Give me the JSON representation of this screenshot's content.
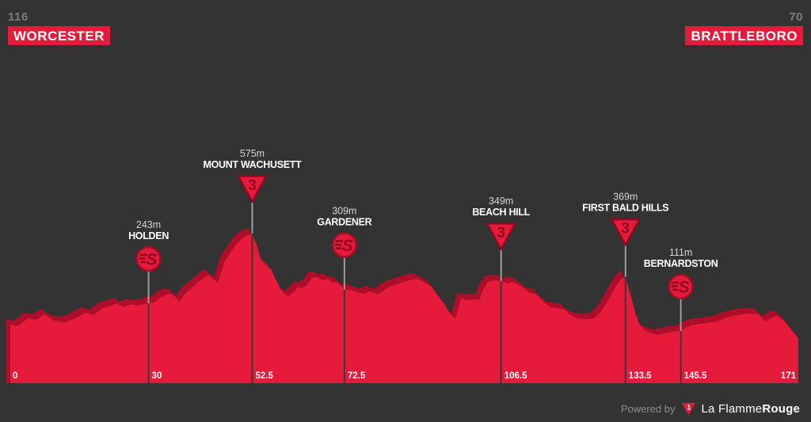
{
  "header": {
    "start": {
      "distance": "116",
      "city": "WORCESTER"
    },
    "finish": {
      "distance": "70",
      "city": "BRATTLEBORO"
    }
  },
  "footer": {
    "powered_by": "Powered by",
    "brand_regular": "La Flamme",
    "brand_bold": "Rouge",
    "logo_glyph": "1"
  },
  "colors": {
    "background": "#333333",
    "profile_red": "#e61a3b",
    "profile_shadow": "#ad0e2a",
    "icon_dark": "#8e0a20",
    "icon_stroke": "#a80c26",
    "marker_line_light": "#9d9d9d",
    "marker_line_dark": "#3a3a3a",
    "marker_elev_text": "#d4d4d4",
    "marker_name_text": "#ffffff",
    "axis_text": "#ffffff"
  },
  "chart_data": {
    "type": "area",
    "x_unit": "km",
    "y_unit": "m",
    "xlim": [
      0,
      171
    ],
    "start_label": "0",
    "finish_label": "171",
    "legend_position": "none",
    "grid": false,
    "markers": [
      {
        "name": "HOLDEN",
        "elevation_label": "243m",
        "elevation_m": 243,
        "km": 30,
        "km_label": "30",
        "type": "sprint"
      },
      {
        "name": "MOUNT WACHUSETT",
        "elevation_label": "575m",
        "elevation_m": 575,
        "km": 52.5,
        "km_label": "52.5",
        "type": "cat3"
      },
      {
        "name": "GARDENER",
        "elevation_label": "309m",
        "elevation_m": 309,
        "km": 72.5,
        "km_label": "72.5",
        "type": "sprint"
      },
      {
        "name": "BEACH HILL",
        "elevation_label": "349m",
        "elevation_m": 349,
        "km": 106.5,
        "km_label": "106.5",
        "type": "cat3"
      },
      {
        "name": "FIRST BALD HILLS",
        "elevation_label": "369m",
        "elevation_m": 369,
        "km": 133.5,
        "km_label": "133.5",
        "type": "cat3"
      },
      {
        "name": "BERNARDSTON",
        "elevation_label": "111m",
        "elevation_m": 111,
        "km": 145.5,
        "km_label": "145.5",
        "type": "sprint"
      }
    ],
    "profile": [
      [
        0,
        141
      ],
      [
        1.7,
        134
      ],
      [
        3.8,
        171
      ],
      [
        5.7,
        164
      ],
      [
        7.4,
        190
      ],
      [
        9.5,
        160
      ],
      [
        11.7,
        152
      ],
      [
        13.8,
        168
      ],
      [
        16.4,
        198
      ],
      [
        18.1,
        186
      ],
      [
        19.8,
        217
      ],
      [
        21.9,
        232
      ],
      [
        23.2,
        243
      ],
      [
        24.6,
        224
      ],
      [
        26.2,
        239
      ],
      [
        27.6,
        232
      ],
      [
        30,
        243
      ],
      [
        31.3,
        247
      ],
      [
        32.7,
        273
      ],
      [
        34.3,
        288
      ],
      [
        35.5,
        281
      ],
      [
        36.7,
        251
      ],
      [
        38.1,
        292
      ],
      [
        39.6,
        319
      ],
      [
        40.8,
        345
      ],
      [
        41.8,
        360
      ],
      [
        42.9,
        379
      ],
      [
        43.9,
        360
      ],
      [
        45.1,
        341
      ],
      [
        46.5,
        443
      ],
      [
        47.9,
        488
      ],
      [
        49.1,
        526
      ],
      [
        50.5,
        556
      ],
      [
        51.7,
        568
      ],
      [
        52.5,
        575
      ],
      [
        53.6,
        511
      ],
      [
        54.4,
        450
      ],
      [
        55.3,
        428
      ],
      [
        56.7,
        401
      ],
      [
        57.5,
        360
      ],
      [
        58.6,
        315
      ],
      [
        59.4,
        288
      ],
      [
        60.3,
        277
      ],
      [
        61.3,
        292
      ],
      [
        62.5,
        322
      ],
      [
        63.4,
        315
      ],
      [
        64.4,
        330
      ],
      [
        65.4,
        364
      ],
      [
        66.6,
        368
      ],
      [
        67.7,
        353
      ],
      [
        68.7,
        360
      ],
      [
        69.7,
        345
      ],
      [
        71.1,
        341
      ],
      [
        72.5,
        309
      ],
      [
        73.9,
        307
      ],
      [
        75.3,
        296
      ],
      [
        76.6,
        288
      ],
      [
        78,
        300
      ],
      [
        79.6,
        285
      ],
      [
        80.8,
        300
      ],
      [
        82,
        319
      ],
      [
        83.5,
        330
      ],
      [
        84.9,
        341
      ],
      [
        86.4,
        352
      ],
      [
        88.2,
        360
      ],
      [
        89.9,
        341
      ],
      [
        91.4,
        322
      ],
      [
        93,
        273
      ],
      [
        94.4,
        232
      ],
      [
        95.6,
        186
      ],
      [
        96.6,
        171
      ],
      [
        97.8,
        266
      ],
      [
        99,
        258
      ],
      [
        100.4,
        262
      ],
      [
        101.8,
        258
      ],
      [
        102.6,
        307
      ],
      [
        103.7,
        345
      ],
      [
        105,
        352
      ],
      [
        106.5,
        349
      ],
      [
        107.8,
        337
      ],
      [
        109,
        345
      ],
      [
        110,
        334
      ],
      [
        111.2,
        319
      ],
      [
        112.6,
        292
      ],
      [
        114.2,
        285
      ],
      [
        115.5,
        254
      ],
      [
        117.1,
        224
      ],
      [
        118.8,
        220
      ],
      [
        120.2,
        213
      ],
      [
        121.6,
        186
      ],
      [
        123.1,
        171
      ],
      [
        125,
        168
      ],
      [
        126.7,
        171
      ],
      [
        128.1,
        202
      ],
      [
        129.7,
        254
      ],
      [
        131.2,
        319
      ],
      [
        132.6,
        360
      ],
      [
        133.5,
        369
      ],
      [
        134.8,
        266
      ],
      [
        135.7,
        190
      ],
      [
        136.6,
        141
      ],
      [
        137.6,
        115
      ],
      [
        138.8,
        103
      ],
      [
        140.3,
        92
      ],
      [
        142.1,
        100
      ],
      [
        143.8,
        107
      ],
      [
        145.5,
        111
      ],
      [
        147.6,
        137
      ],
      [
        149.3,
        145
      ],
      [
        151.2,
        149
      ],
      [
        153.3,
        156
      ],
      [
        155.5,
        175
      ],
      [
        157.6,
        186
      ],
      [
        160.1,
        194
      ],
      [
        162.4,
        190
      ],
      [
        163.8,
        156
      ],
      [
        165,
        171
      ],
      [
        166.2,
        183
      ],
      [
        167.4,
        168
      ],
      [
        168.6,
        141
      ],
      [
        169.8,
        107
      ],
      [
        171,
        77
      ]
    ]
  }
}
